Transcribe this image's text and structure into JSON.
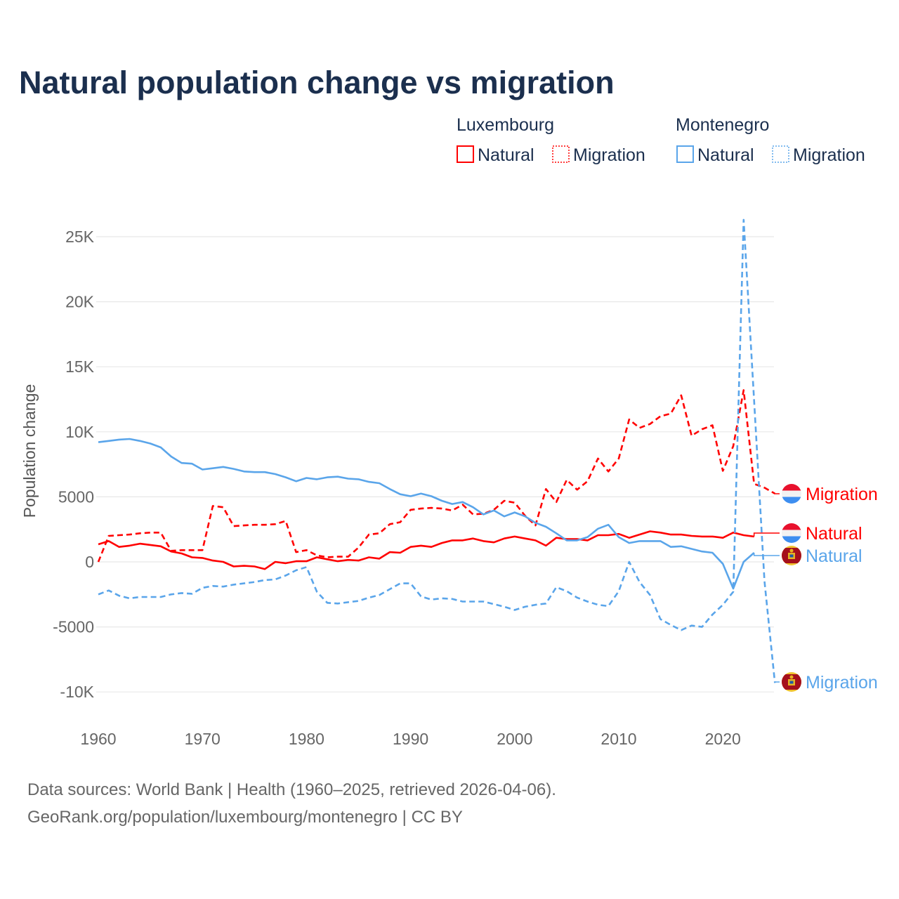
{
  "title": "Natural population change vs migration",
  "legend": {
    "groups": [
      {
        "country": "Luxembourg",
        "color": "#ff0000",
        "items": [
          "Natural",
          "Migration"
        ]
      },
      {
        "country": "Montenegro",
        "color": "#5aa5ea",
        "items": [
          "Natural",
          "Migration"
        ]
      }
    ]
  },
  "footer": {
    "line1": "Data sources: World Bank | Health (1960–2025, retrieved 2026-04-06).",
    "line2": "GeoRank.org/population/luxembourg/montenegro | CC BY"
  },
  "chart_data": {
    "type": "line",
    "title": "Natural population change vs migration",
    "xlabel": "",
    "ylabel": "Population change",
    "xlim": [
      1960,
      2025
    ],
    "ylim": [
      -10000,
      26500
    ],
    "grid": true,
    "legend_placement": "top-right",
    "x_ticks": [
      {
        "v": 1960,
        "label": "1960"
      },
      {
        "v": 1970,
        "label": "1970"
      },
      {
        "v": 1980,
        "label": "1980"
      },
      {
        "v": 1990,
        "label": "1990"
      },
      {
        "v": 2000,
        "label": "2000"
      },
      {
        "v": 2010,
        "label": "2010"
      },
      {
        "v": 2020,
        "label": "2020"
      }
    ],
    "y_ticks": [
      {
        "v": 25000,
        "label": "25K"
      },
      {
        "v": 20000,
        "label": "20K"
      },
      {
        "v": 15000,
        "label": "15K"
      },
      {
        "v": 10000,
        "label": "10K"
      },
      {
        "v": 5000,
        "label": "5000"
      },
      {
        "v": 0,
        "label": "0"
      },
      {
        "v": -5000,
        "label": "-5000"
      },
      {
        "v": -10000,
        "label": "-10K"
      }
    ],
    "series": [
      {
        "name": "Luxembourg Migration",
        "label": "Migration",
        "country": "Luxembourg",
        "color": "#ff0000",
        "dashed": true,
        "start": 1960,
        "values": [
          0,
          2000,
          2050,
          2100,
          2200,
          2250,
          2250,
          850,
          900,
          900,
          900,
          4300,
          4200,
          2750,
          2800,
          2850,
          2850,
          2900,
          3150,
          750,
          900,
          500,
          350,
          400,
          400,
          1100,
          2100,
          2200,
          2900,
          3050,
          4000,
          4100,
          4150,
          4100,
          3950,
          4400,
          3650,
          3700,
          4000,
          4700,
          4550,
          3550,
          2800,
          5600,
          4600,
          6300,
          5550,
          6200,
          7950,
          6950,
          7950,
          10950,
          10300,
          10600,
          11200,
          11400,
          12800,
          9700,
          10200,
          10500,
          7000,
          8900,
          13200,
          6000,
          5700,
          5250
        ]
      },
      {
        "name": "Luxembourg Natural",
        "label": "Natural",
        "country": "Luxembourg",
        "color": "#ff0000",
        "dashed": false,
        "start": 1960,
        "values": [
          1350,
          1600,
          1150,
          1250,
          1400,
          1300,
          1200,
          800,
          650,
          350,
          300,
          100,
          0,
          -350,
          -300,
          -350,
          -550,
          0,
          -100,
          50,
          50,
          350,
          200,
          50,
          150,
          100,
          350,
          250,
          750,
          700,
          1150,
          1250,
          1150,
          1450,
          1650,
          1650,
          1800,
          1600,
          1500,
          1800,
          1950,
          1800,
          1650,
          1250,
          1850,
          1750,
          1750,
          1650,
          2050,
          2050,
          2150,
          1850,
          2100,
          2350,
          2250,
          2100,
          2100,
          2000,
          1950,
          1950,
          1850,
          2250,
          2050,
          1950
        ]
      },
      {
        "name": "Montenegro Natural",
        "label": "Natural",
        "country": "Montenegro",
        "color": "#5aa5ea",
        "dashed": false,
        "start": 1960,
        "values": [
          9200,
          9300,
          9400,
          9450,
          9300,
          9100,
          8800,
          8100,
          7600,
          7550,
          7100,
          7200,
          7300,
          7150,
          6950,
          6900,
          6900,
          6750,
          6500,
          6200,
          6450,
          6350,
          6500,
          6550,
          6400,
          6350,
          6150,
          6050,
          5600,
          5200,
          5050,
          5250,
          5050,
          4700,
          4450,
          4600,
          4200,
          3650,
          3950,
          3500,
          3800,
          3500,
          3000,
          2700,
          2200,
          1650,
          1650,
          1900,
          2550,
          2850,
          1900,
          1450,
          1600,
          1600,
          1600,
          1150,
          1200,
          1000,
          800,
          700,
          -150,
          -2050,
          0,
          700
        ]
      },
      {
        "name": "Montenegro Migration",
        "label": "Migration",
        "country": "Montenegro",
        "color": "#5aa5ea",
        "dashed": true,
        "start": 1960,
        "values": [
          -2500,
          -2200,
          -2600,
          -2800,
          -2700,
          -2700,
          -2700,
          -2500,
          -2400,
          -2450,
          -2000,
          -1850,
          -1900,
          -1750,
          -1650,
          -1550,
          -1400,
          -1350,
          -1050,
          -650,
          -400,
          -2300,
          -3150,
          -3200,
          -3100,
          -3000,
          -2750,
          -2550,
          -2100,
          -1650,
          -1650,
          -2650,
          -2900,
          -2800,
          -2850,
          -3050,
          -3050,
          -3050,
          -3250,
          -3450,
          -3700,
          -3450,
          -3300,
          -3200,
          -1950,
          -2250,
          -2750,
          -3050,
          -3300,
          -3400,
          -2250,
          0,
          -1550,
          -2550,
          -4400,
          -4850,
          -5250,
          -4900,
          -5000,
          -4050,
          -3300,
          -2300,
          26300,
          12400,
          -1500,
          -9300
        ]
      }
    ]
  }
}
